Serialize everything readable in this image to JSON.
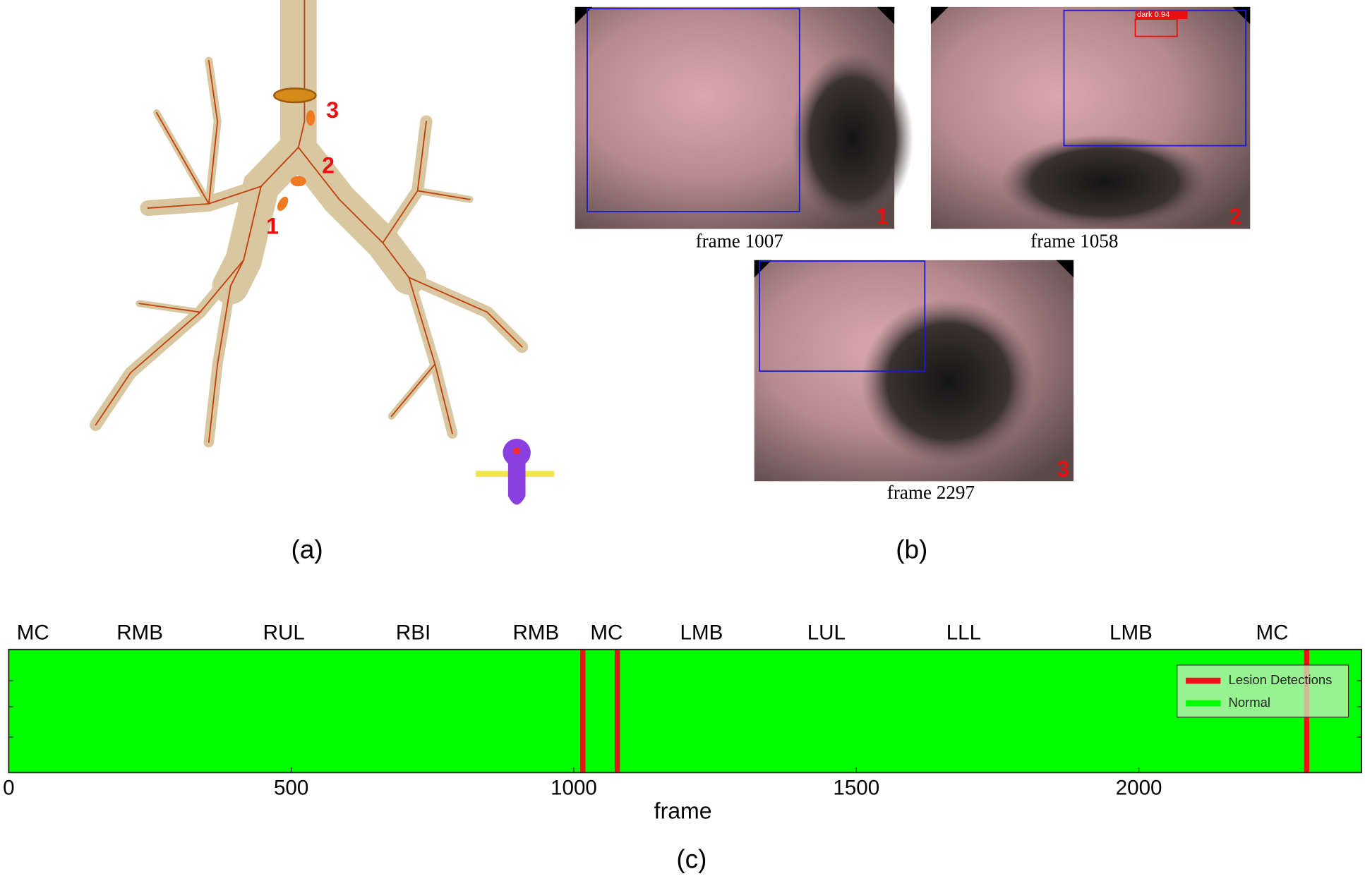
{
  "panels": {
    "a": {
      "label": "(a)",
      "markers": [
        "1",
        "2",
        "3"
      ]
    },
    "b": {
      "label": "(b)",
      "images": [
        {
          "caption": "frame 1007",
          "number": "1"
        },
        {
          "caption": "frame 1058",
          "number": "2",
          "detection": "dark 0.94"
        },
        {
          "caption": "frame 2297",
          "number": "3"
        }
      ]
    }
  },
  "chart_data": {
    "type": "timeline",
    "caption": "(c)",
    "xlabel": "frame",
    "xlim": [
      0,
      2394
    ],
    "xticks": [
      0,
      500,
      1000,
      1500,
      2000
    ],
    "regions": [
      {
        "label": "MC",
        "x": 43
      },
      {
        "label": "RMB",
        "x": 232
      },
      {
        "label": "RUL",
        "x": 487
      },
      {
        "label": "RBI",
        "x": 716
      },
      {
        "label": "RMB",
        "x": 933
      },
      {
        "label": "MC",
        "x": 1058
      },
      {
        "label": "LMB",
        "x": 1226
      },
      {
        "label": "LUL",
        "x": 1447
      },
      {
        "label": "LLL",
        "x": 1690
      },
      {
        "label": "LMB",
        "x": 1986
      },
      {
        "label": "MC",
        "x": 2236
      }
    ],
    "series": [
      {
        "name": "Lesion Detections",
        "color": "#e8141b",
        "values": [
          1016,
          1077,
          2297
        ]
      },
      {
        "name": "Normal",
        "color": "#00ff00"
      }
    ],
    "legend": "upper right"
  }
}
